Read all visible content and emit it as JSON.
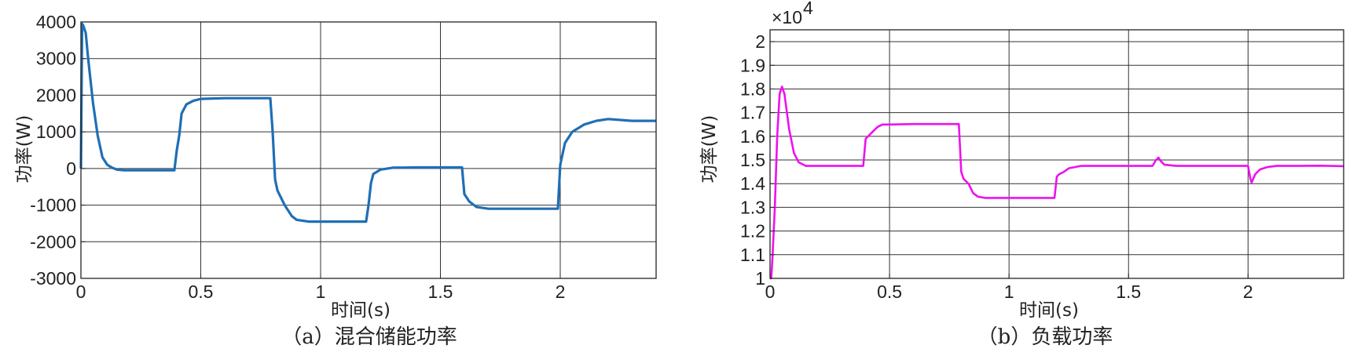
{
  "chart_data": [
    {
      "type": "line",
      "caption": "（a）混合储能功率",
      "xlabel": "时间(s)",
      "ylabel": "功率(W)",
      "xlim": [
        0,
        2.4
      ],
      "ylim": [
        -3000,
        4000
      ],
      "xticks": [
        0,
        0.5,
        1,
        1.5,
        2
      ],
      "xtick_labels": [
        "0",
        "0.5",
        "1",
        "1.5",
        "2"
      ],
      "yticks": [
        -3000,
        -2000,
        -1000,
        0,
        1000,
        2000,
        3000,
        4000
      ],
      "ytick_labels": [
        "-3000",
        "-2000",
        "-1000",
        "0",
        "1000",
        "2000",
        "3000",
        "4000"
      ],
      "grid": true,
      "series": [
        {
          "color": "#1f6fb5",
          "x": [
            0,
            0.005,
            0.01,
            0.02,
            0.03,
            0.05,
            0.07,
            0.09,
            0.11,
            0.13,
            0.15,
            0.18,
            0.22,
            0.3,
            0.39,
            0.4,
            0.41,
            0.42,
            0.44,
            0.47,
            0.5,
            0.6,
            0.7,
            0.79,
            0.8,
            0.81,
            0.82,
            0.85,
            0.88,
            0.9,
            0.95,
            1.0,
            1.1,
            1.19,
            1.2,
            1.21,
            1.22,
            1.25,
            1.3,
            1.4,
            1.59,
            1.6,
            1.61,
            1.62,
            1.65,
            1.7,
            1.8,
            1.99,
            2.0,
            2.01,
            2.02,
            2.05,
            2.1,
            2.15,
            2.2,
            2.3,
            2.4
          ],
          "y": [
            0,
            3950,
            3900,
            3700,
            3000,
            1800,
            900,
            300,
            100,
            20,
            -30,
            -50,
            -50,
            -50,
            -50,
            500,
            900,
            1500,
            1750,
            1850,
            1900,
            1920,
            1920,
            1920,
            1000,
            -300,
            -600,
            -1000,
            -1300,
            -1400,
            -1450,
            -1450,
            -1450,
            -1450,
            -1000,
            -400,
            -150,
            -30,
            20,
            30,
            30,
            -700,
            -800,
            -900,
            -1050,
            -1100,
            -1100,
            -1100,
            100,
            400,
            700,
            1000,
            1200,
            1300,
            1350,
            1300,
            1300
          ]
        }
      ]
    },
    {
      "type": "line",
      "caption": "（b）负载功率",
      "xlabel": "时间(s)",
      "ylabel": "功率(W)",
      "multiplier": "×10",
      "multiplier_exp": "4",
      "xlim": [
        0,
        2.4
      ],
      "ylim": [
        1,
        2.05
      ],
      "xticks": [
        0,
        0.5,
        1,
        1.5,
        2
      ],
      "xtick_labels": [
        "0",
        "0.5",
        "1",
        "1.5",
        "2"
      ],
      "yticks": [
        1,
        1.1,
        1.2,
        1.3,
        1.4,
        1.5,
        1.6,
        1.7,
        1.8,
        1.9,
        2
      ],
      "ytick_labels": [
        "1",
        "1.1",
        "1.2",
        "1.3",
        "1.4",
        "1.5",
        "1.6",
        "1.7",
        "1.8",
        "1.9",
        "2"
      ],
      "grid": true,
      "series": [
        {
          "color": "#ee11ee",
          "x": [
            0,
            0.005,
            0.01,
            0.02,
            0.03,
            0.04,
            0.05,
            0.06,
            0.08,
            0.1,
            0.12,
            0.15,
            0.2,
            0.3,
            0.39,
            0.4,
            0.41,
            0.43,
            0.45,
            0.47,
            0.5,
            0.6,
            0.7,
            0.79,
            0.8,
            0.81,
            0.83,
            0.85,
            0.87,
            0.9,
            1.0,
            1.1,
            1.19,
            1.2,
            1.21,
            1.23,
            1.25,
            1.3,
            1.4,
            1.5,
            1.6,
            1.615,
            1.625,
            1.635,
            1.65,
            1.7,
            1.8,
            1.9,
            2.0,
            2.01,
            2.015,
            2.03,
            2.05,
            2.08,
            2.12,
            2.2,
            2.3,
            2.4
          ],
          "y": [
            1.0,
            1.0,
            1.08,
            1.3,
            1.6,
            1.78,
            1.81,
            1.78,
            1.63,
            1.53,
            1.49,
            1.475,
            1.475,
            1.475,
            1.475,
            1.59,
            1.6,
            1.62,
            1.64,
            1.65,
            1.65,
            1.652,
            1.652,
            1.652,
            1.45,
            1.42,
            1.4,
            1.36,
            1.345,
            1.34,
            1.34,
            1.34,
            1.34,
            1.43,
            1.44,
            1.45,
            1.465,
            1.475,
            1.475,
            1.475,
            1.475,
            1.5,
            1.51,
            1.495,
            1.48,
            1.475,
            1.475,
            1.475,
            1.475,
            1.42,
            1.405,
            1.44,
            1.46,
            1.47,
            1.475,
            1.475,
            1.476,
            1.474
          ]
        }
      ]
    }
  ]
}
